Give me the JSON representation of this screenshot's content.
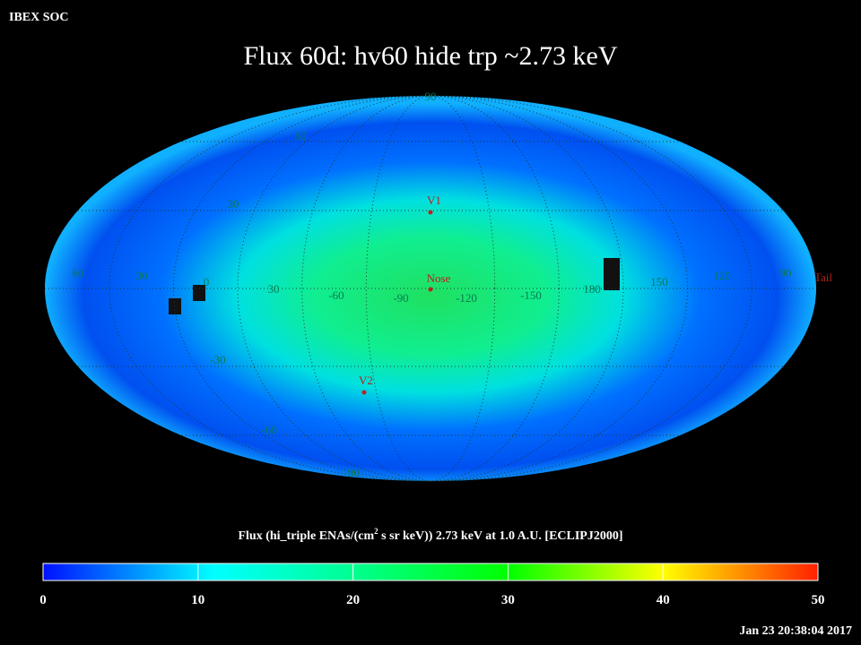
{
  "header": {
    "org": "IBEX SOC",
    "title": "Flux   60d: hv60 hide trp ~2.73 keV"
  },
  "map": {
    "lat_labels": [
      "90",
      "60",
      "30",
      "-30",
      "-60",
      "-90"
    ],
    "lon_labels": [
      "60",
      "30",
      "0",
      "30",
      "-60",
      "-90",
      "-120",
      "-150",
      "180",
      "150",
      "120",
      "90"
    ],
    "markers": [
      {
        "label": "V1"
      },
      {
        "label": "Nose"
      },
      {
        "label": "V2"
      },
      {
        "label": "Tail"
      }
    ]
  },
  "colorbar": {
    "label_parts": [
      "Flux (hi_triple ENAs/(cm",
      "2",
      " s sr keV))  2.73 keV at 1.0 A.U. [ECLIPJ2000]"
    ],
    "range": [
      0,
      50
    ],
    "ticks": [
      0,
      10,
      20,
      30,
      40,
      50
    ]
  },
  "timestamp": "Jan 23 20:38:04 2017"
}
